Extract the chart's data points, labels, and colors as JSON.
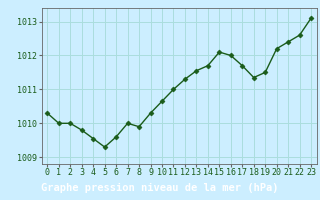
{
  "x": [
    0,
    1,
    2,
    3,
    4,
    5,
    6,
    7,
    8,
    9,
    10,
    11,
    12,
    13,
    14,
    15,
    16,
    17,
    18,
    19,
    20,
    21,
    22,
    23
  ],
  "y": [
    1010.3,
    1010.0,
    1010.0,
    1009.8,
    1009.55,
    1009.3,
    1009.6,
    1010.0,
    1009.9,
    1010.3,
    1010.65,
    1011.0,
    1011.3,
    1011.55,
    1011.7,
    1012.1,
    1012.0,
    1011.7,
    1011.35,
    1011.5,
    1012.2,
    1012.4,
    1012.6,
    1013.1
  ],
  "line_color": "#1a5c1a",
  "marker": "D",
  "marker_size": 2.5,
  "bg_color": "#cceeff",
  "grid_color": "#aadddd",
  "title": "Graphe pression niveau de la mer (hPa)",
  "title_color": "#1a5c1a",
  "title_fontsize": 7.5,
  "xlim": [
    -0.5,
    23.5
  ],
  "ylim": [
    1008.8,
    1013.4
  ],
  "yticks": [
    1009,
    1010,
    1011,
    1012,
    1013
  ],
  "xtick_labels": [
    "0",
    "1",
    "2",
    "3",
    "4",
    "5",
    "6",
    "7",
    "8",
    "9",
    "10",
    "11",
    "12",
    "13",
    "14",
    "15",
    "16",
    "17",
    "18",
    "19",
    "20",
    "21",
    "22",
    "23"
  ],
  "tick_color": "#1a5c1a",
  "tick_fontsize": 6,
  "axis_color": "#666666",
  "linewidth": 1.0,
  "bottom_label_bg": "#2a6e2a",
  "bottom_label_text_color": "#ffffff"
}
